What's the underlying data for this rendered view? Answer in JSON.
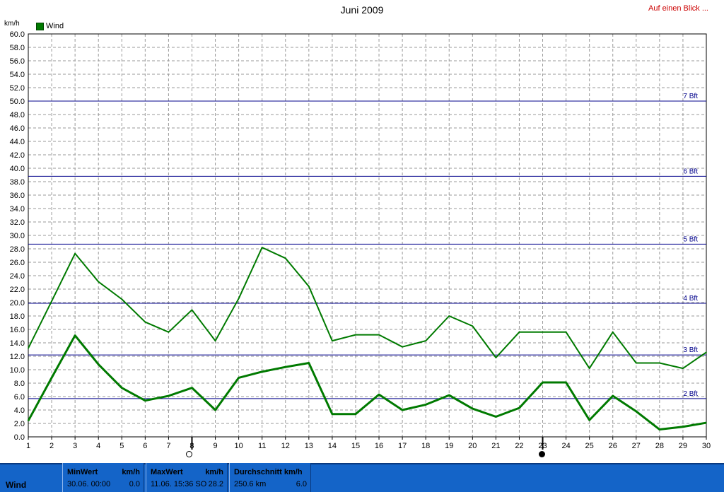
{
  "header": {
    "title": "Juni 2009",
    "glance_link": "Auf einen Blick ...",
    "y_unit": "km/h"
  },
  "legend": {
    "series_label": "Wind",
    "color": "#007a00"
  },
  "chart_data": {
    "type": "line",
    "title": "Juni 2009",
    "ylabel": "km/h",
    "xlabel": "",
    "xlim": [
      1,
      30
    ],
    "ylim": [
      0,
      60
    ],
    "y_ticks": [
      0,
      2,
      4,
      6,
      8,
      10,
      12,
      14,
      16,
      18,
      20,
      22,
      24,
      26,
      28,
      30,
      32,
      34,
      36,
      38,
      40,
      42,
      44,
      46,
      48,
      50,
      52,
      54,
      56,
      58,
      60
    ],
    "x": [
      1,
      2,
      3,
      4,
      5,
      6,
      7,
      8,
      9,
      10,
      11,
      12,
      13,
      14,
      15,
      16,
      17,
      18,
      19,
      20,
      21,
      22,
      23,
      24,
      25,
      26,
      27,
      28,
      29,
      30
    ],
    "grid": true,
    "legend_position": "top-left",
    "series": [
      {
        "name": "Wind",
        "style": "thin",
        "values": [
          13.2,
          20.2,
          27.3,
          23.1,
          20.5,
          17.1,
          15.6,
          18.9,
          14.3,
          20.6,
          28.2,
          26.6,
          22.4,
          14.3,
          15.2,
          15.2,
          13.4,
          14.3,
          18.0,
          16.5,
          11.8,
          15.6,
          15.6,
          15.6,
          10.2,
          15.6,
          11.0,
          11.0,
          10.2,
          12.6
        ]
      },
      {
        "name": "",
        "style": "thick",
        "values": [
          2.4,
          8.8,
          15.1,
          10.8,
          7.3,
          5.4,
          6.1,
          7.3,
          4.0,
          8.8,
          9.7,
          10.4,
          11.0,
          3.4,
          3.4,
          6.3,
          4.0,
          4.8,
          6.2,
          4.2,
          3.0,
          4.3,
          8.1,
          8.1,
          2.5,
          6.1,
          3.8,
          1.1,
          1.5,
          2.1
        ]
      }
    ],
    "reference_lines": [
      {
        "label": "2 Bft",
        "value": 5.7
      },
      {
        "label": "3 Bft",
        "value": 12.2
      },
      {
        "label": "4 Bft",
        "value": 19.9
      },
      {
        "label": "5 Bft",
        "value": 28.7
      },
      {
        "label": "6 Bft",
        "value": 38.8
      },
      {
        "label": "7 Bft",
        "value": 50.0
      }
    ],
    "moon_markers": [
      {
        "day": 8,
        "phase": "full"
      },
      {
        "day": 23,
        "phase": "new"
      }
    ]
  },
  "colors": {
    "series": "#007a00",
    "reference_line": "#00008b",
    "grid": "#9a9a9a",
    "status_bar": "#1464c8",
    "glance_link": "#cc0000"
  },
  "status_bar": {
    "label": "Wind",
    "min": {
      "header": "MinWert",
      "unit": "km/h",
      "date": "30.06.  00:00",
      "value": "0.0"
    },
    "max": {
      "header": "MaxWert",
      "unit": "km/h",
      "date": "11.06.  15:36 SO",
      "value": "28.2"
    },
    "avg": {
      "header": "Durchschnitt km/h",
      "distance": "250.6 km",
      "value": "6.0"
    }
  }
}
